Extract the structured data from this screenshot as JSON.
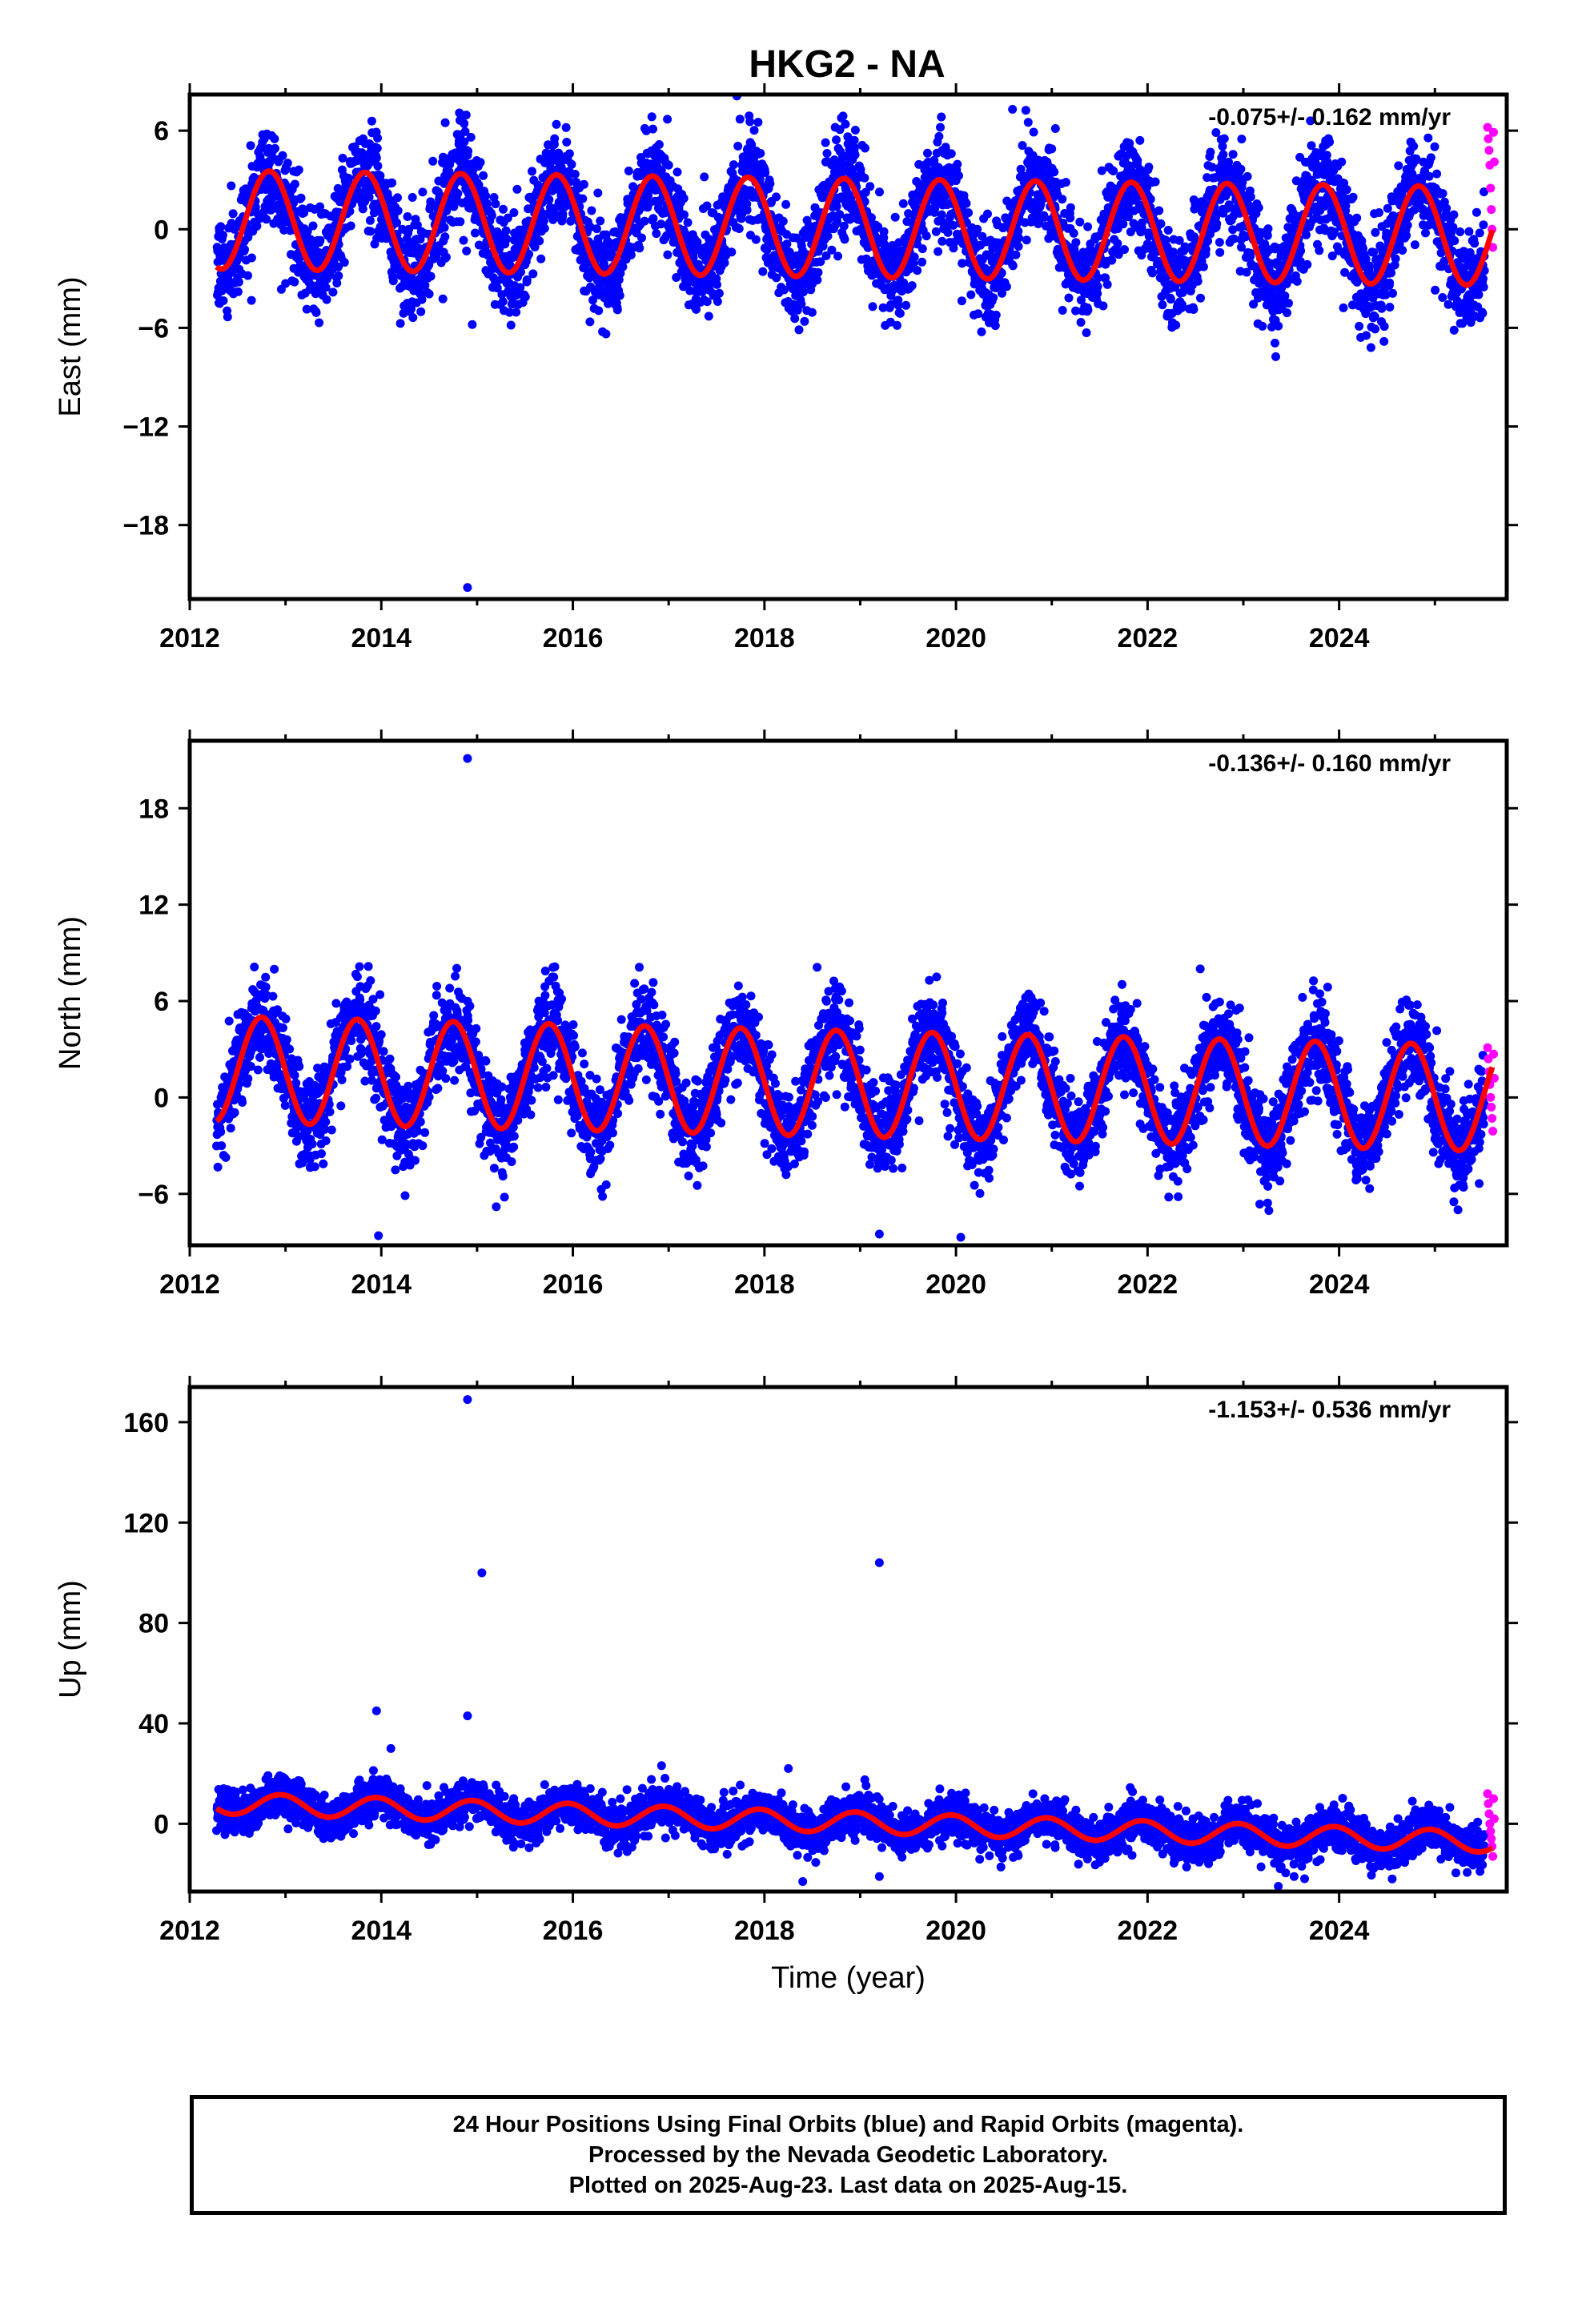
{
  "title": "HKG2 - NA",
  "colors": {
    "final": "#0000ff",
    "rapid": "#ff00ff",
    "model": "#ff0000",
    "frame": "#000000"
  },
  "chart_data": [
    {
      "type": "scatter",
      "ylabel": "East (mm)",
      "xlabel": "",
      "rate_label": "-0.075+/- 0.162 mm/yr",
      "xlim": [
        2012,
        2025.75
      ],
      "ylim": [
        -22.5,
        8.2
      ],
      "xticks": [
        2012,
        2014,
        2016,
        2018,
        2020,
        2022,
        2024
      ],
      "xticklabels": [
        "2012",
        "2014",
        "2016",
        "2018",
        "2020",
        "2022",
        "2024"
      ],
      "yticks": [
        6,
        0,
        -6,
        -12,
        -18
      ],
      "yticklabels": [
        "6",
        "0",
        "−6",
        "−12",
        "−18"
      ],
      "series": [
        {
          "kind": "final",
          "start": 2012.28,
          "end": 2025.52,
          "amplitude": 3.0,
          "phase": 0.58,
          "slope": -0.075,
          "offset": 0.6,
          "scatter": 1.5
        },
        {
          "kind": "rapid",
          "start": 2025.55,
          "end": 2025.62,
          "values": [
            6.2,
            5.5,
            4.8,
            3.9,
            2.5,
            1.2,
            0.0,
            -1.1,
            5.9,
            4.1
          ]
        },
        {
          "kind": "model",
          "start": 2012.28,
          "end": 2025.6
        }
      ],
      "outliers": [
        [
          2014.9,
          -21.8
        ],
        [
          2020.59,
          7.3
        ],
        [
          2023.7,
          6.6
        ],
        [
          2013.0,
          -3.3
        ],
        [
          2014.95,
          -5.8
        ]
      ]
    },
    {
      "type": "scatter",
      "ylabel": "North (mm)",
      "xlabel": "",
      "rate_label": "-0.136+/- 0.160 mm/yr",
      "xlim": [
        2012,
        2025.75
      ],
      "ylim": [
        -9.2,
        22.2
      ],
      "xticks": [
        2012,
        2014,
        2016,
        2018,
        2020,
        2022,
        2024
      ],
      "xticklabels": [
        "2012",
        "2014",
        "2016",
        "2018",
        "2020",
        "2022",
        "2024"
      ],
      "yticks": [
        18,
        12,
        6,
        0,
        -6
      ],
      "yticklabels": [
        "18",
        "12",
        "6",
        "0",
        "−6"
      ],
      "series": [
        {
          "kind": "final",
          "start": 2012.28,
          "end": 2025.52,
          "amplitude": 3.3,
          "phase": 0.5,
          "slope": -0.136,
          "offset": 1.8,
          "scatter": 1.4
        },
        {
          "kind": "rapid",
          "start": 2025.55,
          "end": 2025.62,
          "values": [
            3.1,
            2.4,
            1.6,
            0.8,
            0.0,
            -0.6,
            -1.3,
            -2.1,
            2.7,
            1.2
          ]
        },
        {
          "kind": "model",
          "start": 2012.28,
          "end": 2025.6
        }
      ],
      "outliers": [
        [
          2014.9,
          21.1
        ],
        [
          2013.97,
          -8.6
        ],
        [
          2015.2,
          -6.8
        ],
        [
          2019.2,
          -8.5
        ],
        [
          2020.05,
          -8.7
        ],
        [
          2018.55,
          8.1
        ],
        [
          2022.55,
          8.0
        ]
      ]
    },
    {
      "type": "scatter",
      "ylabel": "Up (mm)",
      "xlabel": "Time (year)",
      "rate_label": "-1.153+/- 0.536 mm/yr",
      "xlim": [
        2012,
        2025.75
      ],
      "ylim": [
        -27,
        174
      ],
      "xticks": [
        2012,
        2014,
        2016,
        2018,
        2020,
        2022,
        2024
      ],
      "xticklabels": [
        "2012",
        "2014",
        "2016",
        "2018",
        "2020",
        "2022",
        "2024"
      ],
      "yticks": [
        160,
        120,
        80,
        40,
        0
      ],
      "yticklabels": [
        "160",
        "120",
        "80",
        "40",
        "0"
      ],
      "series": [
        {
          "kind": "final",
          "start": 2012.28,
          "end": 2025.52,
          "amplitude": 4.2,
          "phase": 0.7,
          "slope": -1.153,
          "offset": 8.5,
          "scatter": 4.2
        },
        {
          "kind": "rapid",
          "start": 2025.55,
          "end": 2025.62,
          "values": [
            12.0,
            8.0,
            4.0,
            0.0,
            -3.0,
            -6.0,
            -9.0,
            -13.0,
            10.0,
            2.0
          ]
        },
        {
          "kind": "model",
          "start": 2012.28,
          "end": 2025.6
        }
      ],
      "outliers": [
        [
          2014.9,
          169.0
        ],
        [
          2015.05,
          100.0
        ],
        [
          2019.2,
          104.0
        ],
        [
          2013.95,
          45.0
        ],
        [
          2014.9,
          43.0
        ],
        [
          2014.1,
          30.0
        ],
        [
          2018.25,
          22.0
        ],
        [
          2018.4,
          -23.0
        ],
        [
          2019.2,
          -21.0
        ]
      ]
    }
  ],
  "footer": {
    "line1": "24 Hour Positions Using Final Orbits (blue) and Rapid Orbits (magenta).",
    "line2": "Processed by the Nevada Geodetic Laboratory.",
    "line3": "Plotted on 2025-Aug-23. Last data on 2025-Aug-15."
  }
}
